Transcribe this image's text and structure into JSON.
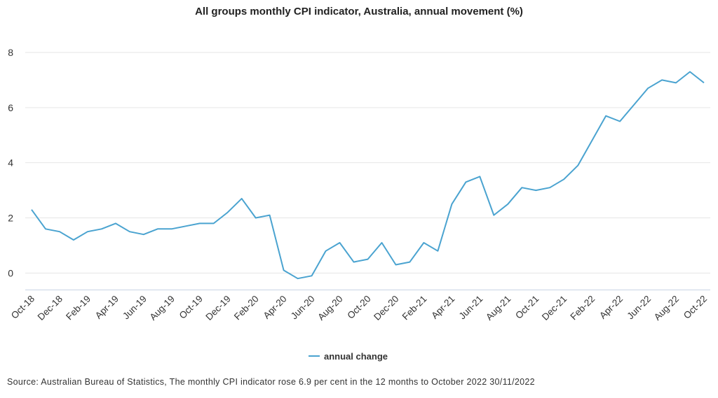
{
  "chart_data": {
    "type": "line",
    "title": "All groups monthly CPI indicator, Australia, annual movement (%)",
    "xlabel": "",
    "ylabel": "",
    "ylim": [
      -0.6,
      8
    ],
    "yticks": [
      0,
      2,
      4,
      6,
      8
    ],
    "grid": true,
    "legend_position": "bottom-center",
    "line_color": "#4aa3d0",
    "x": [
      "Oct-18",
      "Nov-18",
      "Dec-18",
      "Jan-19",
      "Feb-19",
      "Mar-19",
      "Apr-19",
      "May-19",
      "Jun-19",
      "Jul-19",
      "Aug-19",
      "Sep-19",
      "Oct-19",
      "Nov-19",
      "Dec-19",
      "Jan-20",
      "Feb-20",
      "Mar-20",
      "Apr-20",
      "May-20",
      "Jun-20",
      "Jul-20",
      "Aug-20",
      "Sep-20",
      "Oct-20",
      "Nov-20",
      "Dec-20",
      "Jan-21",
      "Feb-21",
      "Mar-21",
      "Apr-21",
      "May-21",
      "Jun-21",
      "Jul-21",
      "Aug-21",
      "Sep-21",
      "Oct-21",
      "Nov-21",
      "Dec-21",
      "Jan-22",
      "Feb-22",
      "Mar-22",
      "Apr-22",
      "May-22",
      "Jun-22",
      "Jul-22",
      "Aug-22",
      "Sep-22",
      "Oct-22"
    ],
    "xtick_labels": [
      "Oct-18",
      "Dec-18",
      "Feb-19",
      "Apr-19",
      "Jun-19",
      "Aug-19",
      "Oct-19",
      "Dec-19",
      "Feb-20",
      "Apr-20",
      "Jun-20",
      "Aug-20",
      "Oct-20",
      "Dec-20",
      "Feb-21",
      "Apr-21",
      "Jun-21",
      "Aug-21",
      "Oct-21",
      "Dec-21",
      "Feb-22",
      "Apr-22",
      "Jun-22",
      "Aug-22",
      "Oct-22"
    ],
    "series": [
      {
        "name": "annual change",
        "values": [
          2.3,
          1.6,
          1.5,
          1.2,
          1.5,
          1.6,
          1.8,
          1.5,
          1.4,
          1.6,
          1.6,
          1.7,
          1.8,
          1.8,
          2.2,
          2.7,
          2.0,
          2.1,
          0.1,
          -0.2,
          -0.1,
          0.8,
          1.1,
          0.4,
          0.5,
          1.1,
          0.3,
          0.4,
          1.1,
          0.8,
          2.5,
          3.3,
          3.5,
          2.1,
          2.5,
          3.1,
          3.0,
          3.1,
          3.4,
          3.9,
          4.8,
          5.7,
          5.5,
          6.1,
          6.7,
          7.0,
          6.9,
          7.3,
          6.9
        ]
      }
    ]
  },
  "source": "Source: Australian Bureau of Statistics, The monthly CPI indicator rose 6.9 per cent in the 12 months to October 2022 30/11/2022"
}
